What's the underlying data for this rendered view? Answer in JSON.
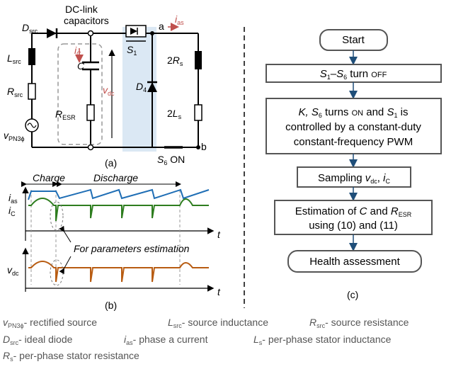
{
  "circuit": {
    "d_src": {
      "main": "D",
      "sub": "src"
    },
    "dc_link_line1": "DC-link",
    "dc_link_line2": "capacitors",
    "i_c": {
      "main": "i",
      "sub": "C"
    },
    "cap_c": "C",
    "r_esr": {
      "main": "R",
      "sub": "ESR"
    },
    "v_dc": {
      "main": "v",
      "sub": "dc"
    },
    "l_src": {
      "main": "L",
      "sub": "src"
    },
    "r_src": {
      "main": "R",
      "sub": "src"
    },
    "v_pn": {
      "main": "v",
      "sub": "PN3ϕ"
    },
    "s1": {
      "main": "S",
      "sub": "1"
    },
    "node_a": "a",
    "i_as": {
      "main": "i",
      "sub": "as"
    },
    "two_rs": {
      "pre": "2",
      "main": "R",
      "sub": "s"
    },
    "d4": {
      "main": "D",
      "sub": "4"
    },
    "two_ls": {
      "pre": "2",
      "main": "L",
      "sub": "s"
    },
    "node_b": "b",
    "s6_on": {
      "main": "S",
      "sub": "6",
      "post": " ON"
    },
    "caption": "(a)"
  },
  "waveforms": {
    "charge": "Charge",
    "discharge": "Discharge",
    "i_as": {
      "main": "i",
      "sub": "as"
    },
    "i_c": {
      "main": "i",
      "sub": "C"
    },
    "t1": "t",
    "annotation": "For parameters estimation",
    "v_dc": {
      "main": "v",
      "sub": "dc"
    },
    "t2": "t",
    "caption": "(b)",
    "colors": {
      "i_as": "#1f6eb5",
      "i_c": "#2e7d1f",
      "v_dc": "#b85c12"
    }
  },
  "flowchart": {
    "start": "Start",
    "step1": {
      "a": "S",
      "a_sub": "1",
      "dash": "–",
      "b": "S",
      "b_sub": "6",
      "rest": " turn ",
      "small": "OFF"
    },
    "step2_line1": {
      "a": "K, S",
      "a_sub": "6",
      "mid": " turns ",
      "small": "ON",
      "and": " and ",
      "b": "S",
      "b_sub": "1",
      "end": " is"
    },
    "step2_line2": "controlled by a constant-duty",
    "step2_line3": "constant-frequency PWM",
    "step3": {
      "pre": "Sampling ",
      "v": "v",
      "v_sub": "dc",
      "comma": ", ",
      "i": "i",
      "i_sub": "C"
    },
    "step4_line1": {
      "pre": "Estimation of ",
      "c": "C",
      "and": " and ",
      "r": "R",
      "r_sub": "ESR"
    },
    "step4_line2": "using (10) and (11)",
    "end": "Health assessment",
    "caption": "(c)"
  },
  "legend": {
    "v_pn": {
      "main": "v",
      "sub": "PN3ϕ",
      "desc": "- rectified source"
    },
    "l_src": {
      "main": "L",
      "sub": "src",
      "desc": "- source inductance"
    },
    "r_src": {
      "main": "R",
      "sub": "src",
      "desc": "- source resistance"
    },
    "d_src": {
      "main": "D",
      "sub": "src",
      "desc": "- ideal diode"
    },
    "i_as": {
      "main": "i",
      "sub": "as",
      "desc": "- phase a current"
    },
    "l_s": {
      "main": "L",
      "sub": "s",
      "desc": "- per-phase stator inductance"
    },
    "r_s": {
      "main": "R",
      "sub": "s",
      "desc": "- per-phase stator resistance"
    }
  },
  "colors": {
    "highlight": "#dbe8f4",
    "arrow": "#1f4e79",
    "box_border": "#555555",
    "label_red": "#c0504d",
    "legend_text": "#555555"
  }
}
